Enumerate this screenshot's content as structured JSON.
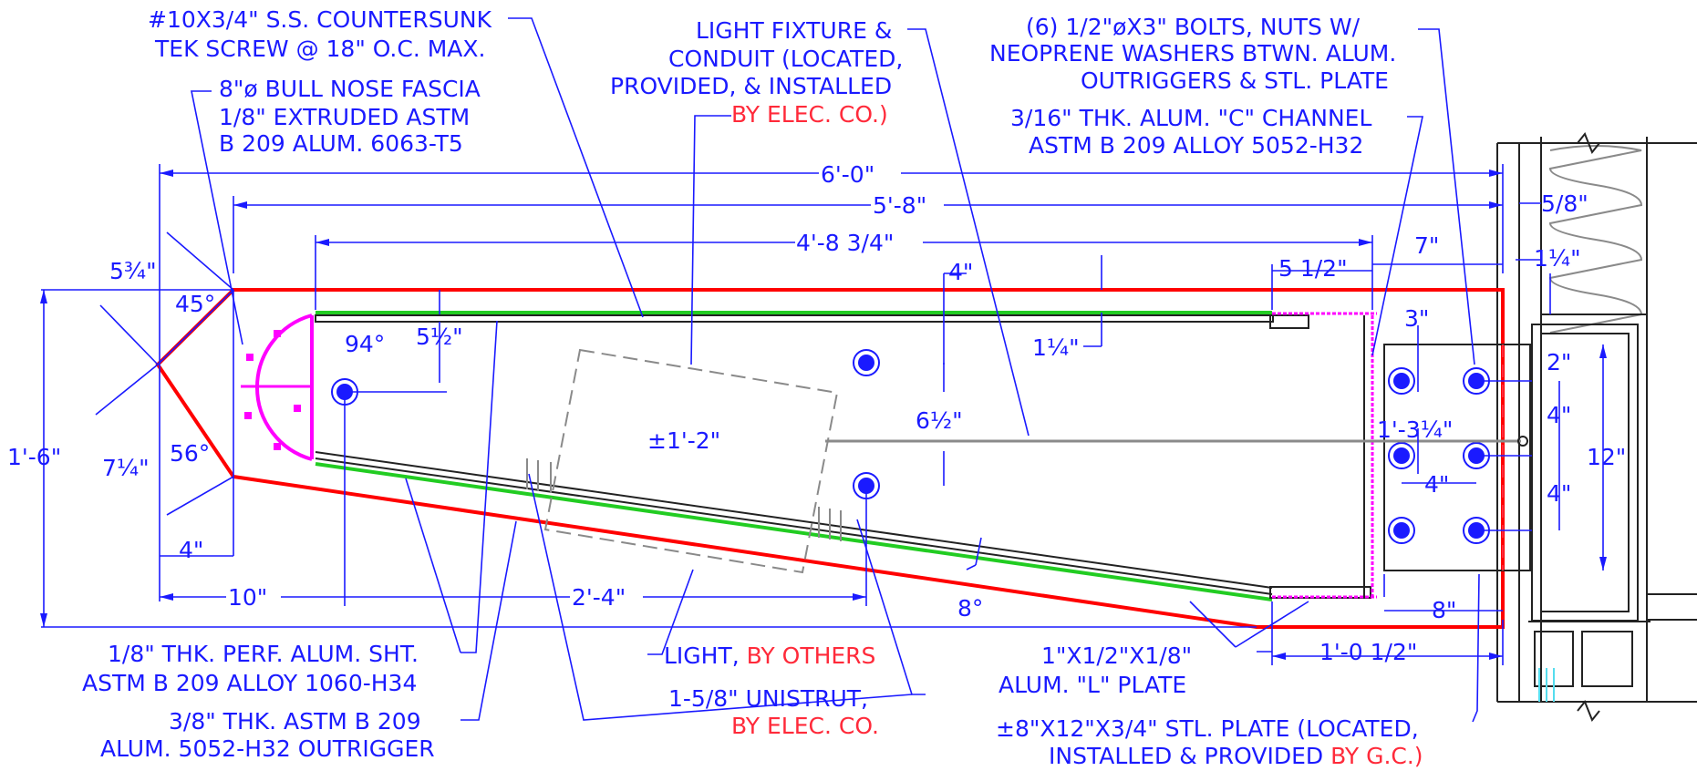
{
  "colors": {
    "dimension": "#1a1aff",
    "red_outline": "#ff0000",
    "magenta": "#ff00ff",
    "green": "#22cc22",
    "red_note": "#ff2a3a",
    "cyan": "#55ddee"
  },
  "notes": {
    "screw": [
      "#10X3/4\" S.S. COUNTERSUNK",
      "TEK SCREW @ 18\" O.C. MAX."
    ],
    "fascia": [
      "8\"ø BULL NOSE FASCIA",
      "1/8\" EXTRUDED ASTM",
      "B 209 ALUM. 6063-T5"
    ],
    "light_fixture": [
      "LIGHT FIXTURE &",
      "CONDUIT (LOCATED,",
      "PROVIDED, & INSTALLED"
    ],
    "light_fixture_red": "BY ELEC. CO.)",
    "bolts": [
      "(6) 1/2\"øX3\" BOLTS, NUTS W/",
      "NEOPRENE WASHERS BTWN. ALUM.",
      "OUTRIGGERS & STL. PLATE"
    ],
    "channel": [
      "3/16\" THK. ALUM. \"C\" CHANNEL",
      "ASTM B 209 ALLOY 5052-H32"
    ],
    "perf": [
      "1/8\" THK. PERF. ALUM. SHT.",
      "ASTM B 209 ALLOY 1060-H34"
    ],
    "outrigger": [
      "3/8\" THK. ASTM B 209",
      "ALUM. 5052-H32 OUTRIGGER"
    ],
    "light_others": "LIGHT, ",
    "light_others_red": "BY OTHERS",
    "unistrut": "1-5/8\" UNISTRUT,",
    "unistrut_red": "BY ELEC. CO.",
    "l_plate": [
      "1\"X1/2\"X1/8\"",
      "ALUM. \"L\" PLATE"
    ],
    "stl_plate": "±8\"X12\"X3/4\" STL. PLATE (LOCATED,",
    "stl_plate2": "INSTALLED & PROVIDED ",
    "stl_plate2_red": "BY G.C.)"
  },
  "dims": {
    "d6_0": "6'-0\"",
    "d5_8": "5'-8\"",
    "d4_8": "4'-8 3/4\"",
    "d5_12": "5 1/2\"",
    "d7": "7\"",
    "d4top": "4\"",
    "d1_14": "1¼\"",
    "d3": "3\"",
    "d2": "2\"",
    "d4a": "4\"",
    "d4b": "4\"",
    "d4c": "4\"",
    "d12": "12\"",
    "d1_3": "1'-3¼\"",
    "d8": "8\"",
    "d1_0": "1'-0 1/2\"",
    "d5_34": "5¾\"",
    "d45": "45°",
    "d94": "94°",
    "d5_half": "5½\"",
    "d1_quarter": "1¼\"",
    "d6_half": "6½\"",
    "d1_2": "±1'-2\"",
    "d1_6": "1'-6\"",
    "d7_14": "7¼\"",
    "d56": "56°",
    "d4bot": "4\"",
    "d10": "10\"",
    "d2_4": "2'-4\"",
    "d8deg": "8°",
    "d5_8in": "5/8\"",
    "d1_14b": "1¼\""
  }
}
